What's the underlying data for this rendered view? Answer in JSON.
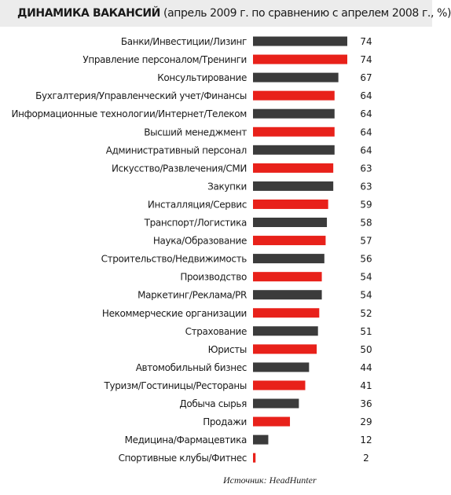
{
  "chart_data": {
    "type": "bar",
    "orientation": "horizontal",
    "title": "ДИНАМИКА ВАКАНСИЙ",
    "subtitle": "(апрель 2009 г. по сравнению с апрелем 2008 г., %)",
    "source": "Источник:  HeadHunter",
    "colors": {
      "dark": "#3b3b3b",
      "red": "#e8211a"
    },
    "categories": [
      "Банки/Инвестиции/Лизинг",
      "Управление персоналом/Тренинги",
      "Консультирование",
      "Бухгалтерия/Управленческий учет/Финансы",
      "Информационные технологии/Интернет/Телеком",
      "Высший менеджмент",
      "Административный персонал",
      "Искусство/Развлечения/СМИ",
      "Закупки",
      "Инсталляция/Сервис",
      "Транспорт/Логистика",
      "Наука/Образование",
      "Строительство/Недвижимость",
      "Производство",
      "Маркетинг/Реклама/PR",
      "Некоммерческие организации",
      "Страхование",
      "Юристы",
      "Автомобильный бизнес",
      "Туризм/Гостиницы/Рестораны",
      "Добыча сырья",
      "Продажи",
      "Медицина/Фармацевтика",
      "Спортивные клубы/Фитнес"
    ],
    "values": [
      74,
      74,
      67,
      64,
      64,
      64,
      64,
      63,
      63,
      59,
      58,
      57,
      56,
      54,
      54,
      52,
      51,
      50,
      44,
      41,
      36,
      29,
      12,
      2
    ],
    "bar_colors": [
      "dark",
      "red",
      "dark",
      "red",
      "dark",
      "red",
      "dark",
      "red",
      "dark",
      "red",
      "dark",
      "red",
      "dark",
      "red",
      "dark",
      "red",
      "dark",
      "red",
      "dark",
      "red",
      "dark",
      "red",
      "dark",
      "red"
    ],
    "xlim": [
      0,
      74
    ],
    "grid": false,
    "legend": "none"
  }
}
